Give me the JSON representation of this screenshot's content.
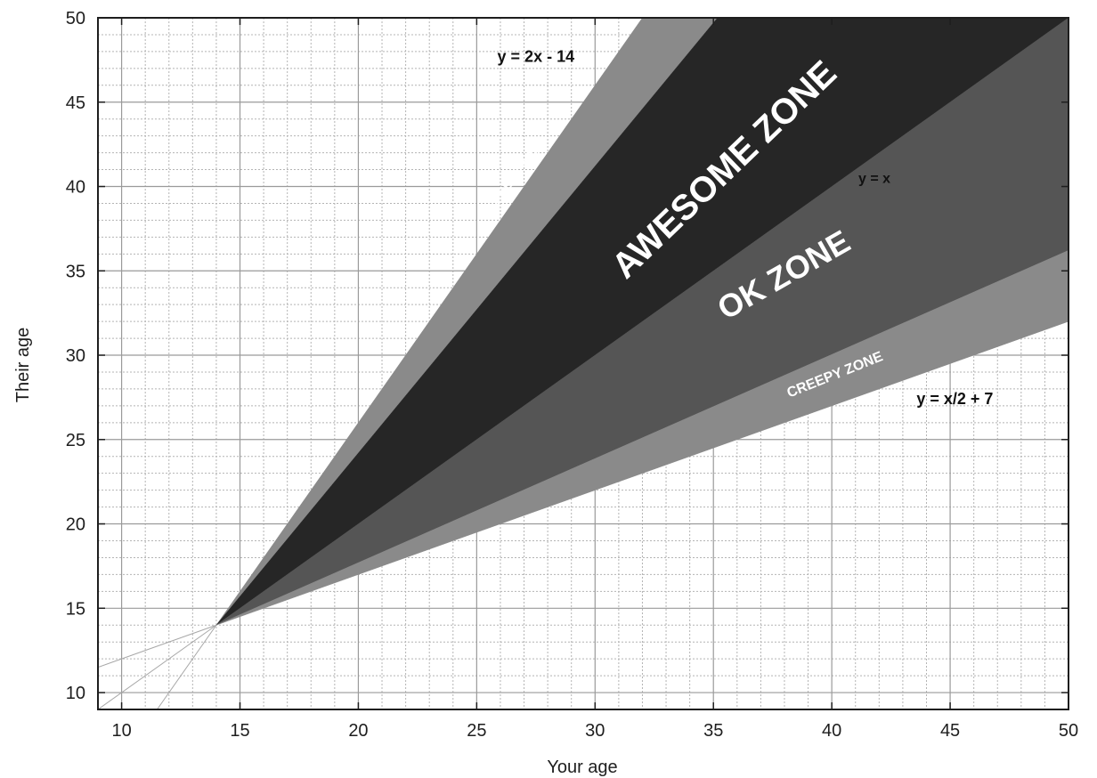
{
  "chart_data": {
    "type": "area",
    "title": "",
    "xlabel": "Your age",
    "ylabel": "Their age",
    "xlim": [
      9,
      50
    ],
    "ylim": [
      9,
      50
    ],
    "x_ticks": [
      10,
      15,
      20,
      25,
      30,
      35,
      40,
      45,
      50
    ],
    "y_ticks": [
      10,
      15,
      20,
      25,
      30,
      35,
      40,
      45,
      50
    ],
    "grid": true,
    "minor_grid_step": 1,
    "lines": [
      {
        "label": "y = 2x - 14",
        "slope": 2,
        "intercept": -14
      },
      {
        "label": "y = x",
        "slope": 1,
        "intercept": 0
      },
      {
        "label": "y = x/2 + 7",
        "slope": 0.5,
        "intercept": 7
      }
    ],
    "boundary_slopes": {
      "awesome_top": 1.7,
      "ok_bottom": 0.617
    },
    "origin": [
      14,
      14
    ],
    "zones": [
      {
        "name": "creepy_upper",
        "label": "CREEPY ZONE",
        "color": "#8a8a8a"
      },
      {
        "name": "awesome",
        "label": "AWESOME ZONE",
        "color": "#262626"
      },
      {
        "name": "ok",
        "label": "OK ZONE",
        "color": "#555555"
      },
      {
        "name": "creepy_lower",
        "label": "CREEPY ZONE",
        "color": "#8a8a8a"
      }
    ]
  }
}
